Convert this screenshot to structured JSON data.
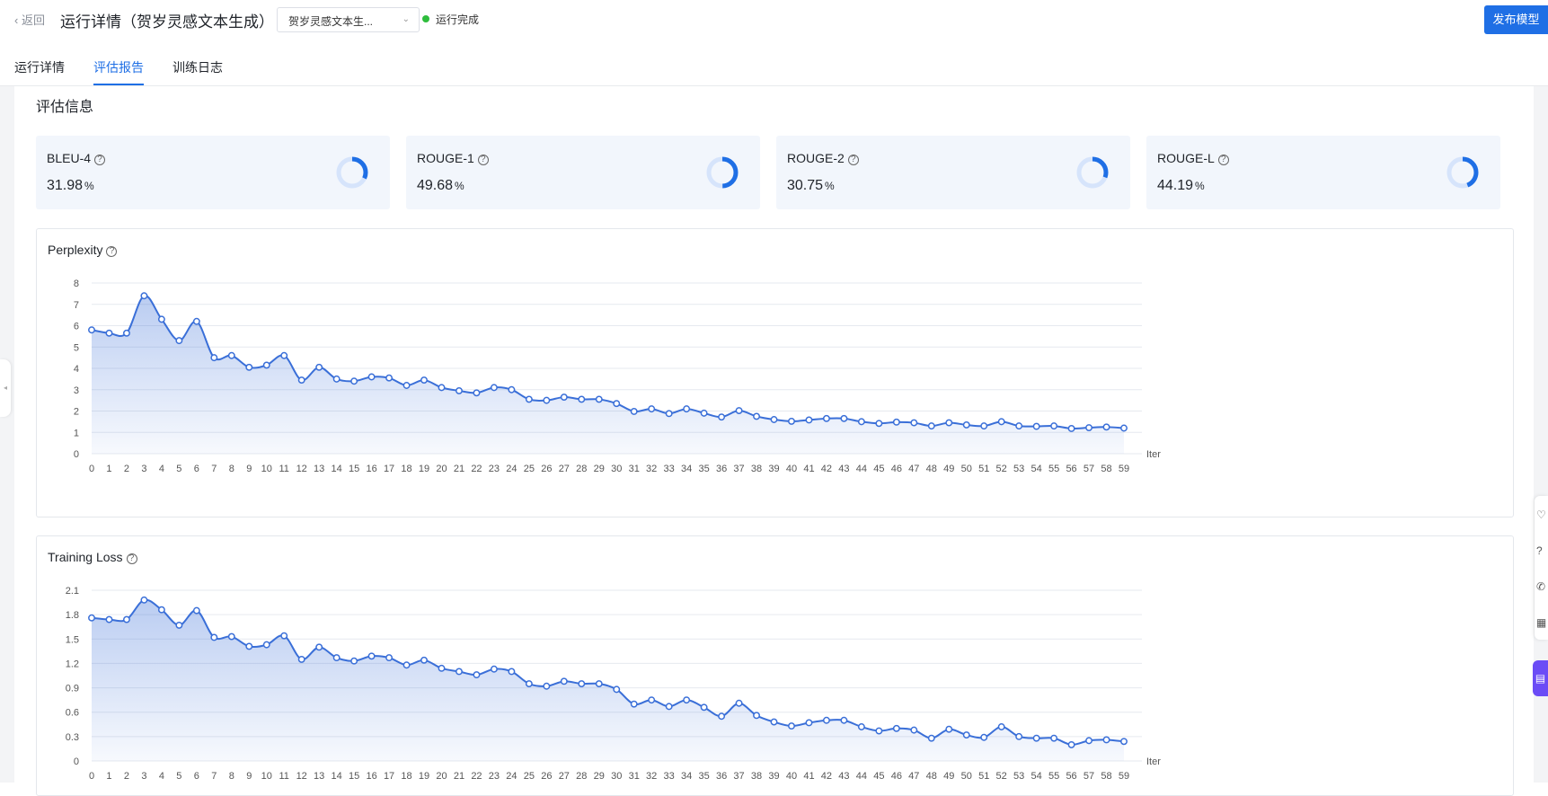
{
  "header": {
    "back_label": "返回",
    "title": "运行详情（贺岁灵感文本生成）",
    "selector_value": "贺岁灵感文本生...",
    "status": "运行完成",
    "status_color": "#2ebd3c",
    "publish_label": "发布模型",
    "accent_color": "#1f6fe5"
  },
  "tabs": [
    {
      "label": "运行详情",
      "active": false
    },
    {
      "label": "评估报告",
      "active": true
    },
    {
      "label": "训练日志",
      "active": false
    }
  ],
  "section_title": "评估信息",
  "metrics": [
    {
      "name": "BLEU-4",
      "value": "31.98",
      "unit": "%",
      "percent": 31.98
    },
    {
      "name": "ROUGE-1",
      "value": "49.68",
      "unit": "%",
      "percent": 49.68
    },
    {
      "name": "ROUGE-2",
      "value": "30.75",
      "unit": "%",
      "percent": 30.75
    },
    {
      "name": "ROUGE-L",
      "value": "44.19",
      "unit": "%",
      "percent": 44.19
    }
  ],
  "icons": [
    "chevron-left-icon",
    "chevron-down-icon",
    "help-icon",
    "donut-progress-icon",
    "collapse-arrow-icon",
    "heart-icon",
    "question-icon",
    "phone-icon",
    "apps-icon",
    "chat-icon"
  ],
  "chart_data": [
    {
      "type": "area",
      "title": "Perplexity",
      "xlabel": "Iter",
      "ylabel": "",
      "ylim": [
        0,
        8
      ],
      "yticks": [
        "0",
        "1",
        "2",
        "3",
        "4",
        "5",
        "6",
        "7",
        "8"
      ],
      "x": [
        0,
        1,
        2,
        3,
        4,
        5,
        6,
        7,
        8,
        9,
        10,
        11,
        12,
        13,
        14,
        15,
        16,
        17,
        18,
        19,
        20,
        21,
        22,
        23,
        24,
        25,
        26,
        27,
        28,
        29,
        30,
        31,
        32,
        33,
        34,
        35,
        36,
        37,
        38,
        39,
        40,
        41,
        42,
        43,
        44,
        45,
        46,
        47,
        48,
        49,
        50,
        51,
        52,
        53,
        54,
        55,
        56,
        57,
        58,
        59
      ],
      "values": [
        5.8,
        5.65,
        5.65,
        7.4,
        6.3,
        5.3,
        6.2,
        4.5,
        4.6,
        4.05,
        4.15,
        4.6,
        3.45,
        4.05,
        3.5,
        3.4,
        3.6,
        3.55,
        3.2,
        3.45,
        3.1,
        2.95,
        2.85,
        3.1,
        3.0,
        2.55,
        2.5,
        2.65,
        2.55,
        2.55,
        2.35,
        1.98,
        2.1,
        1.88,
        2.1,
        1.9,
        1.72,
        2.02,
        1.75,
        1.6,
        1.52,
        1.58,
        1.65,
        1.65,
        1.5,
        1.42,
        1.48,
        1.45,
        1.3,
        1.45,
        1.35,
        1.3,
        1.5,
        1.3,
        1.28,
        1.3,
        1.18,
        1.22,
        1.25,
        1.2
      ],
      "grid": true,
      "color": "#3a6fd8"
    },
    {
      "type": "area",
      "title": "Training Loss",
      "xlabel": "Iter",
      "ylabel": "",
      "ylim": [
        0,
        2.1
      ],
      "yticks": [
        "0",
        "0.3",
        "0.6",
        "0.9",
        "1.2",
        "1.5",
        "1.8",
        "2.1"
      ],
      "x": [
        0,
        1,
        2,
        3,
        4,
        5,
        6,
        7,
        8,
        9,
        10,
        11,
        12,
        13,
        14,
        15,
        16,
        17,
        18,
        19,
        20,
        21,
        22,
        23,
        24,
        25,
        26,
        27,
        28,
        29,
        30,
        31,
        32,
        33,
        34,
        35,
        36,
        37,
        38,
        39,
        40,
        41,
        42,
        43,
        44,
        45,
        46,
        47,
        48,
        49,
        50,
        51,
        52,
        53,
        54,
        55,
        56,
        57,
        58,
        59
      ],
      "values": [
        1.76,
        1.74,
        1.74,
        1.98,
        1.86,
        1.67,
        1.85,
        1.52,
        1.53,
        1.41,
        1.43,
        1.54,
        1.25,
        1.4,
        1.27,
        1.23,
        1.29,
        1.27,
        1.18,
        1.24,
        1.14,
        1.1,
        1.06,
        1.13,
        1.1,
        0.95,
        0.92,
        0.98,
        0.95,
        0.95,
        0.88,
        0.7,
        0.75,
        0.67,
        0.75,
        0.66,
        0.55,
        0.71,
        0.56,
        0.48,
        0.43,
        0.47,
        0.5,
        0.5,
        0.42,
        0.37,
        0.4,
        0.38,
        0.28,
        0.39,
        0.32,
        0.29,
        0.42,
        0.3,
        0.28,
        0.28,
        0.2,
        0.25,
        0.26,
        0.24
      ],
      "grid": true,
      "color": "#3a6fd8"
    }
  ]
}
